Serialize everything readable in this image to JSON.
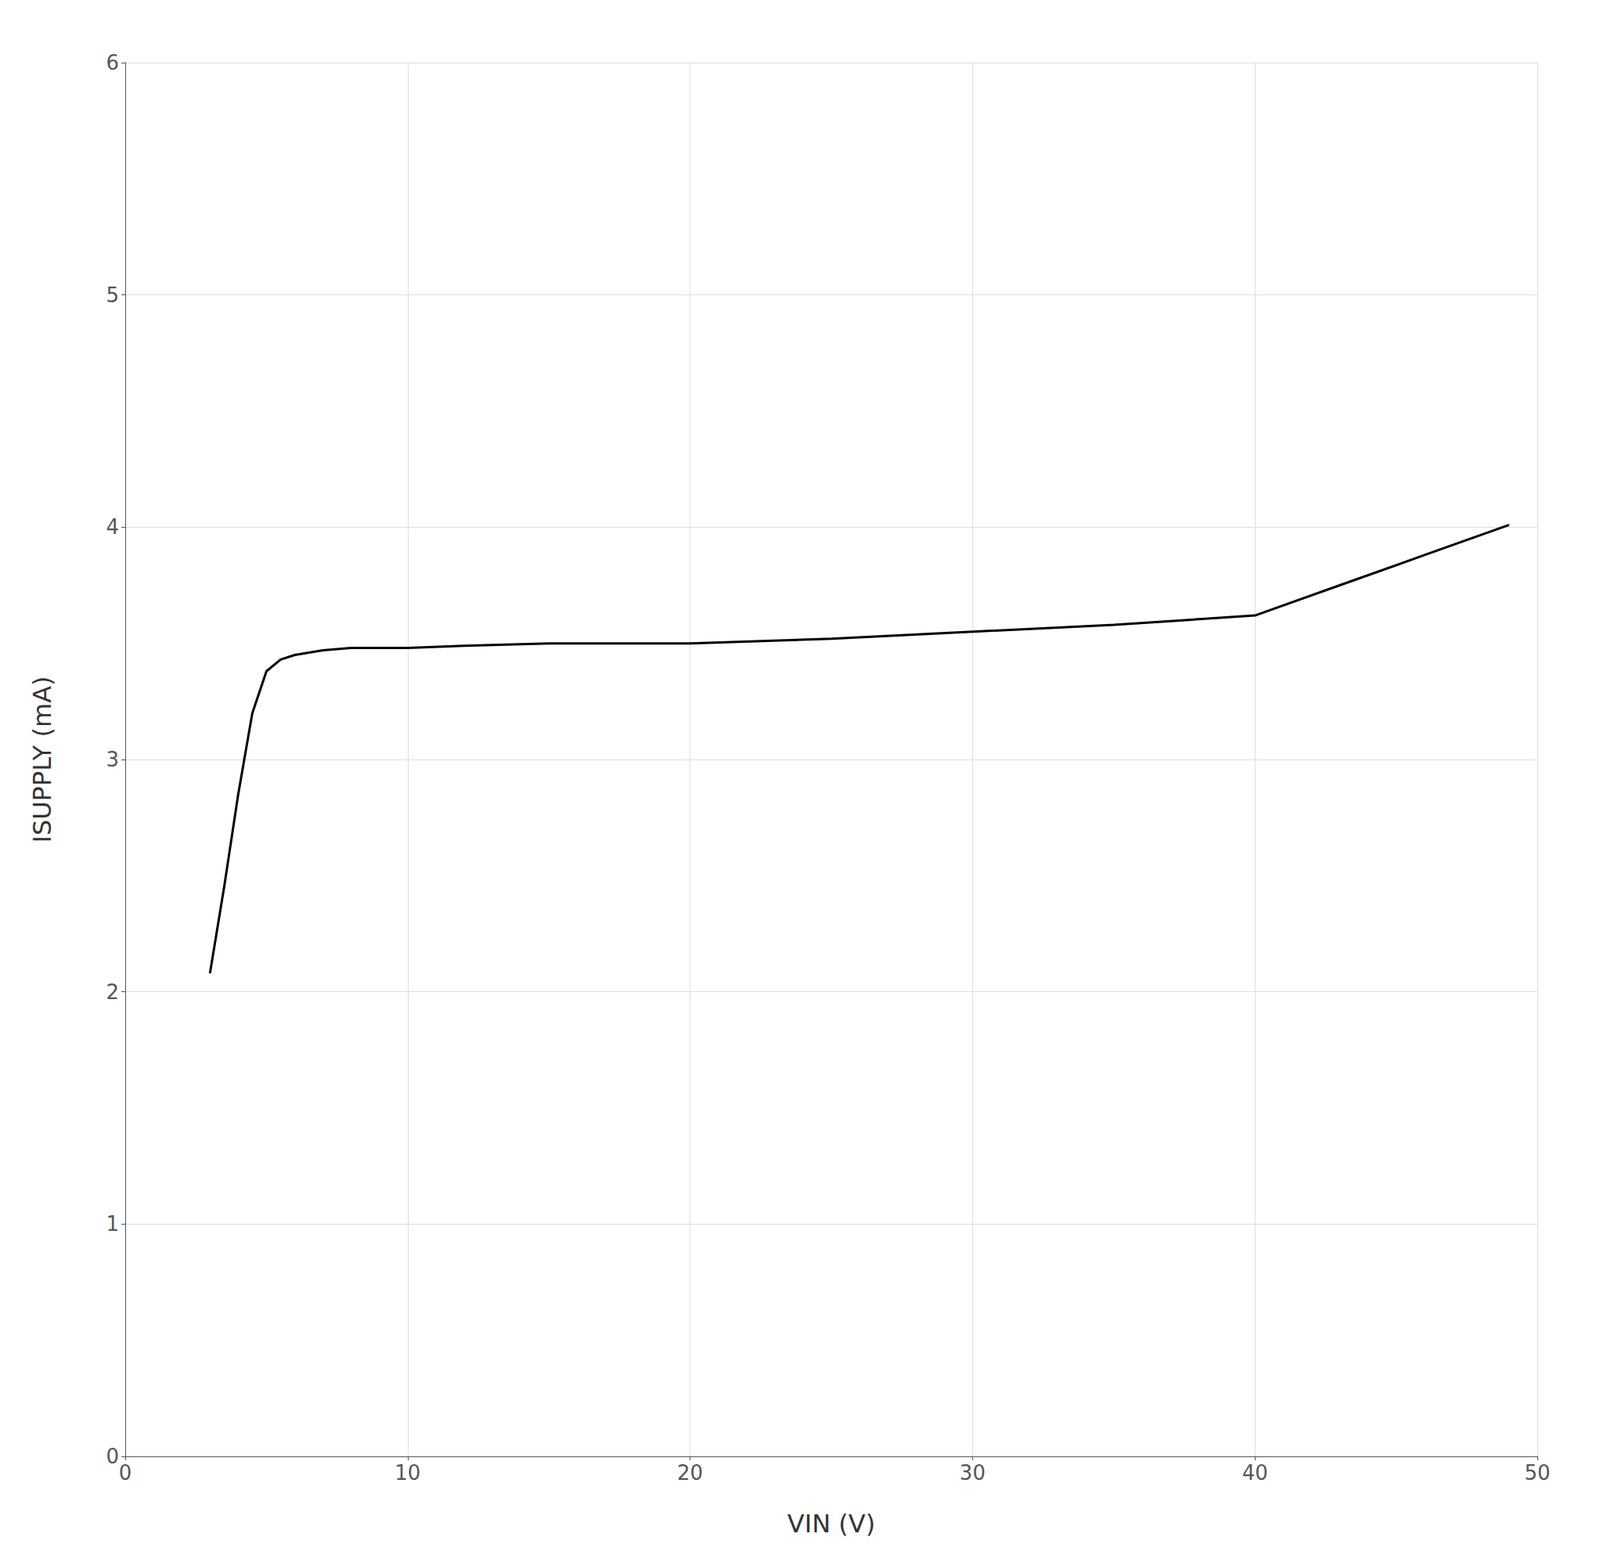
{
  "chart_data": {
    "type": "line",
    "x_label": "VIN (V)",
    "y_label": "ISUPPLY (mA)",
    "x": [
      3.0,
      3.5,
      4.0,
      4.5,
      5.0,
      5.5,
      6.0,
      7.0,
      8.0,
      10.0,
      12.0,
      15.0,
      20.0,
      25.0,
      30.0,
      35.0,
      40.0,
      43.0,
      46.0,
      49.0
    ],
    "values": [
      2.08,
      2.45,
      2.85,
      3.2,
      3.38,
      3.43,
      3.45,
      3.47,
      3.48,
      3.48,
      3.49,
      3.5,
      3.5,
      3.52,
      3.55,
      3.58,
      3.62,
      3.75,
      3.88,
      4.01
    ],
    "color": "#000000",
    "xlim": [
      0,
      50
    ],
    "ylim": [
      0,
      6
    ],
    "xticks": [
      0,
      10,
      20,
      30,
      40,
      50
    ],
    "yticks": [
      0,
      1,
      2,
      3,
      4,
      5,
      6
    ],
    "grid": true
  }
}
